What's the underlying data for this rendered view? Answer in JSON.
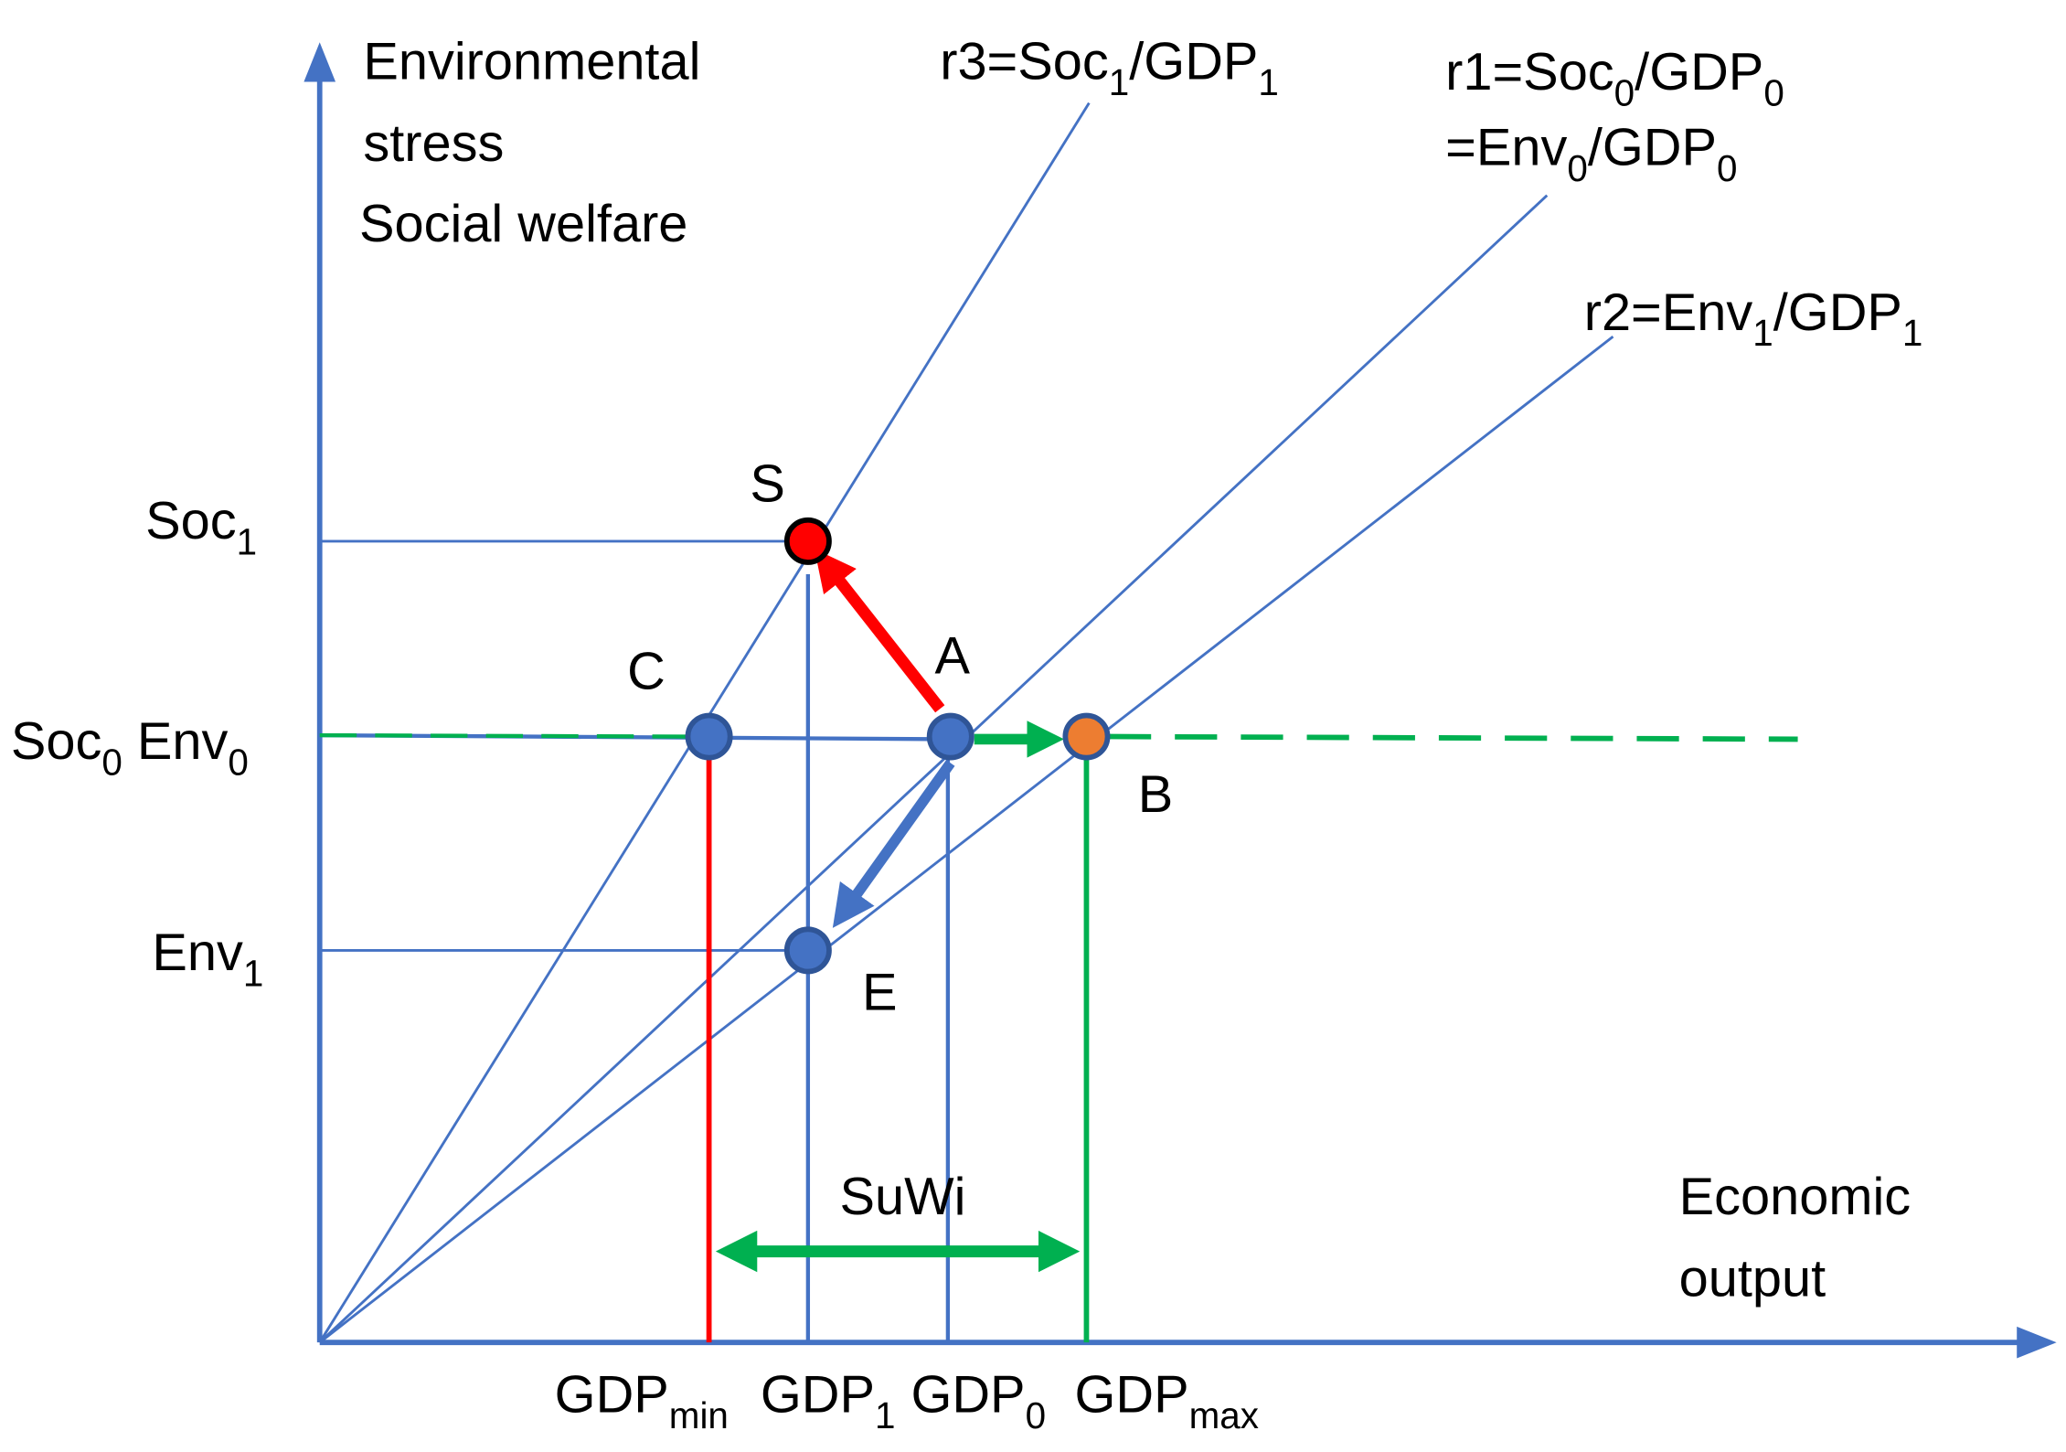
{
  "y_axis_label": [
    [
      "Environmental"
    ],
    [
      "stress"
    ],
    [
      "Social welfare"
    ]
  ],
  "x_axis_label": [
    [
      "Economic"
    ],
    [
      "output"
    ]
  ],
  "rays": [
    [
      "r3=Soc",
      "1",
      "/GDP",
      "1"
    ],
    [
      "r1=Soc",
      "0",
      "/GDP",
      "0"
    ],
    [
      "=Env",
      "0",
      "/GDP",
      "0"
    ],
    [
      "r2=Env",
      "1",
      "/GDP",
      "1"
    ]
  ],
  "y_levels": [
    [
      "Soc",
      "1"
    ],
    [
      "Soc",
      "0",
      " Env",
      "0"
    ],
    [
      "Env",
      "1"
    ]
  ],
  "x_levels": [
    [
      "GDP",
      "min"
    ],
    [
      "GDP",
      "1"
    ],
    [
      "GDP",
      "0"
    ],
    [
      "GDP",
      "max"
    ]
  ],
  "points": [
    "S",
    "C",
    "A",
    "B",
    "E"
  ],
  "range_label": "SuWi"
}
